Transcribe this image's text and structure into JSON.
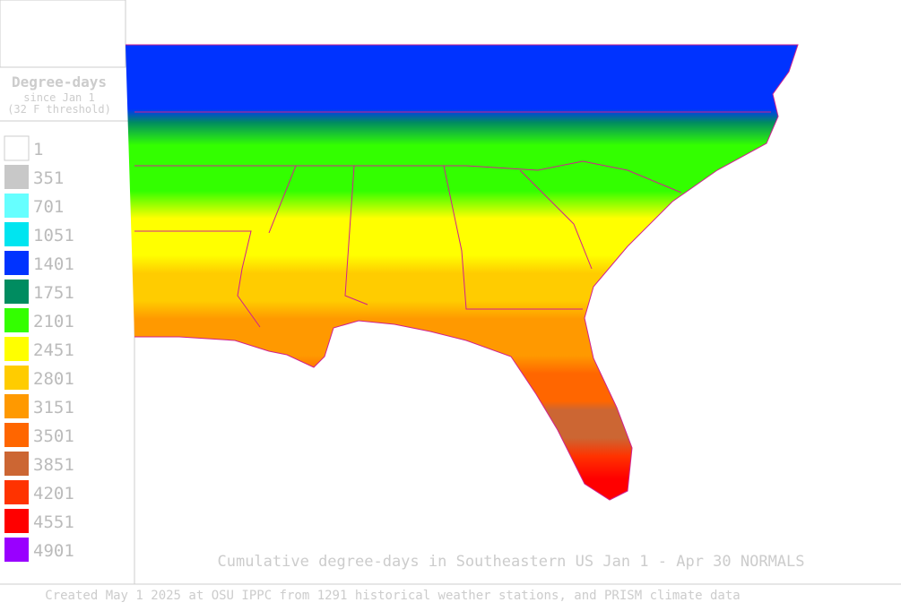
{
  "legend": {
    "title": "Degree-days",
    "subtitle": "since Jan 1",
    "threshold": "(32 F threshold)",
    "items": [
      {
        "label": "1",
        "color": "#ffffff"
      },
      {
        "label": "351",
        "color": "#c8c8c8"
      },
      {
        "label": "701",
        "color": "#66ffff"
      },
      {
        "label": "1051",
        "color": "#00e5f0"
      },
      {
        "label": "1401",
        "color": "#0033ff"
      },
      {
        "label": "1751",
        "color": "#008c60"
      },
      {
        "label": "2101",
        "color": "#33ff00"
      },
      {
        "label": "2451",
        "color": "#ffff00"
      },
      {
        "label": "2801",
        "color": "#ffcc00"
      },
      {
        "label": "3151",
        "color": "#ff9900"
      },
      {
        "label": "3501",
        "color": "#ff6600"
      },
      {
        "label": "3851",
        "color": "#cc6633"
      },
      {
        "label": "4201",
        "color": "#ff3300"
      },
      {
        "label": "4551",
        "color": "#ff0000"
      },
      {
        "label": "4901",
        "color": "#9900ff"
      }
    ]
  },
  "map": {
    "title": "Cumulative degree-days in Southeastern US Jan 1 - Apr 30 NORMALS"
  },
  "footer": "Created May 1 2025 at OSU IPPC from 1291 historical weather stations, and PRISM climate data"
}
